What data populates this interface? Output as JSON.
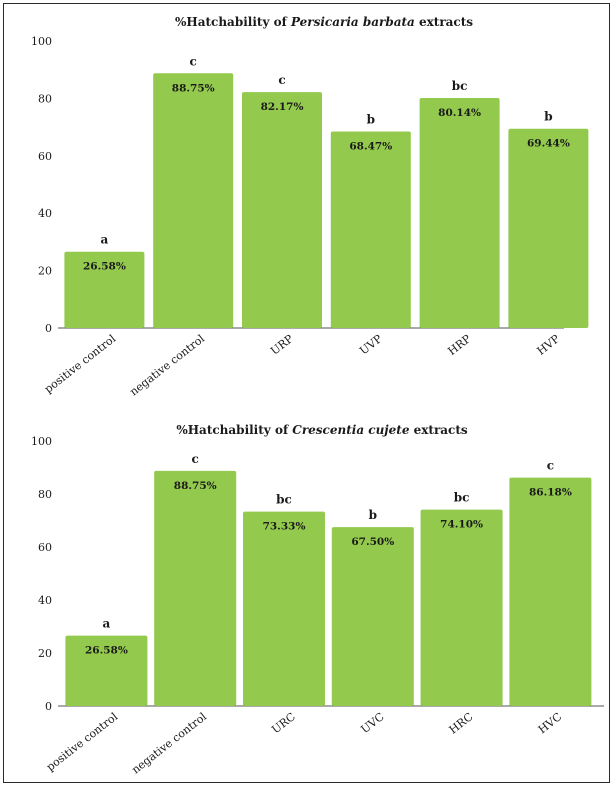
{
  "colors": {
    "bar": "#93c94d",
    "axis": "#555555",
    "text": "#1a1a1a"
  },
  "chart_data": [
    {
      "type": "bar",
      "title_prefix": "%Hatchability of ",
      "title_italic": "Persicaria barbata",
      "title_suffix": " extracts",
      "categories": [
        "positive control",
        "negative control",
        "URP",
        "UVP",
        "HRP",
        "HVP"
      ],
      "values": [
        26.58,
        88.75,
        82.17,
        68.47,
        80.14,
        69.44
      ],
      "value_labels": [
        "26.58%",
        "88.75%",
        "82.17%",
        "68.47%",
        "80.14%",
        "69.44%"
      ],
      "significance_letters": [
        "a",
        "c",
        "c",
        "b",
        "bc",
        "b"
      ],
      "ylim": [
        0,
        100
      ],
      "yticks": [
        0,
        20,
        40,
        60,
        80,
        100
      ],
      "grid": false,
      "xlabel": "",
      "ylabel": ""
    },
    {
      "type": "bar",
      "title_prefix": "%Hatchability of ",
      "title_italic": "Crescentia cujete",
      "title_suffix": " extracts",
      "categories": [
        "positive control",
        "negative control",
        "URC",
        "UVC",
        "HRC",
        "HVC"
      ],
      "values": [
        26.58,
        88.75,
        73.33,
        67.5,
        74.1,
        86.18
      ],
      "value_labels": [
        "26.58%",
        "88.75%",
        "73.33%",
        "67.50%",
        "74.10%",
        "86.18%"
      ],
      "significance_letters": [
        "a",
        "c",
        "bc",
        "b",
        "bc",
        "c"
      ],
      "ylim": [
        0,
        100
      ],
      "yticks": [
        0,
        20,
        40,
        60,
        80,
        100
      ],
      "grid": false,
      "xlabel": "",
      "ylabel": ""
    }
  ]
}
